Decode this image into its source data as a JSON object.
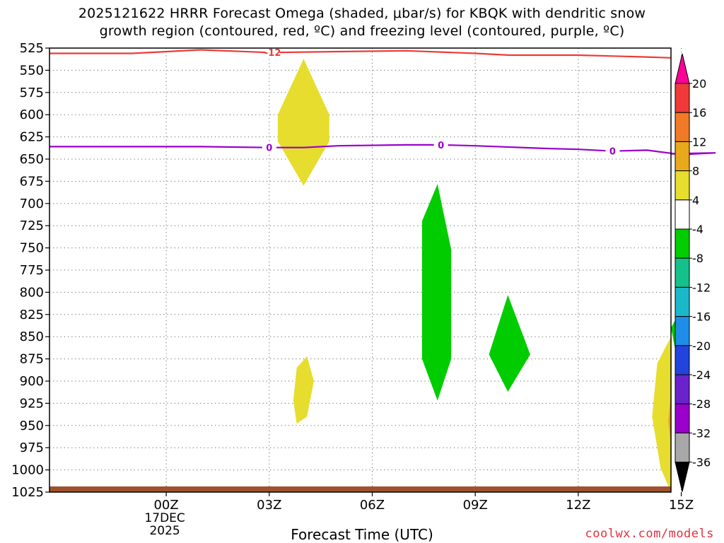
{
  "title": {
    "line1": "2025121622 HRRR Forecast Omega (shaded, μbar/s) for KBQK with dendritic snow",
    "line2": "growth region (contoured, red, ºC) and freezing level (contoured, purple, ºC)"
  },
  "xlabel": "Forecast Time (UTC)",
  "credit": "coolwx.com/models",
  "chart_data": {
    "type": "contour",
    "x_unit": "hours since 00Z 17DEC2025",
    "xlim": [
      -3.4,
      14.7
    ],
    "ylim": [
      525,
      1025
    ],
    "y_inverted": true,
    "yticks": [
      525,
      550,
      575,
      600,
      625,
      650,
      675,
      700,
      725,
      750,
      775,
      800,
      825,
      850,
      875,
      900,
      925,
      950,
      975,
      1000,
      1025
    ],
    "xticks": [
      {
        "x": 0,
        "label": "00Z",
        "date": "17DEC",
        "year": "2025"
      },
      {
        "x": 3,
        "label": "03Z"
      },
      {
        "x": 6,
        "label": "06Z"
      },
      {
        "x": 9,
        "label": "09Z"
      },
      {
        "x": 12,
        "label": "12Z"
      },
      {
        "x": 15,
        "label": "15Z"
      }
    ],
    "grid": true,
    "dgz_contour": {
      "label": "-12",
      "color": "#ee3a3a",
      "label_at": 3.1,
      "points": [
        [
          -3.4,
          531
        ],
        [
          -1,
          531
        ],
        [
          1,
          527
        ],
        [
          3,
          530
        ],
        [
          5,
          529
        ],
        [
          7,
          528
        ],
        [
          9,
          531
        ],
        [
          10,
          533
        ],
        [
          12,
          533
        ],
        [
          14,
          535
        ],
        [
          14.7,
          536
        ]
      ]
    },
    "freezing_level": {
      "label": "0",
      "color": "#9900cc",
      "label_at": [
        3.0,
        8.0,
        13.0
      ],
      "points": [
        [
          -3.4,
          636
        ],
        [
          -1,
          636
        ],
        [
          1,
          636
        ],
        [
          3,
          637
        ],
        [
          4,
          637
        ],
        [
          5,
          635
        ],
        [
          7,
          634
        ],
        [
          8,
          634
        ],
        [
          9,
          635
        ],
        [
          11,
          638
        ],
        [
          12,
          639
        ],
        [
          13,
          641
        ],
        [
          14,
          640
        ],
        [
          15,
          645
        ],
        [
          16,
          643
        ],
        [
          14.7,
          644
        ]
      ]
    },
    "omega_regions": [
      {
        "color": "#e6dd2e",
        "points": [
          [
            4.0,
            537
          ],
          [
            4.75,
            600
          ],
          [
            4.75,
            630
          ],
          [
            4.0,
            680
          ],
          [
            3.25,
            630
          ],
          [
            3.25,
            600
          ]
        ]
      },
      {
        "color": "#e6dd2e",
        "points": [
          [
            4.1,
            872
          ],
          [
            4.3,
            900
          ],
          [
            4.1,
            940
          ],
          [
            3.8,
            948
          ],
          [
            3.7,
            922
          ],
          [
            3.8,
            885
          ]
        ]
      },
      {
        "color": "#00cc00",
        "points": [
          [
            7.9,
            678
          ],
          [
            8.3,
            752
          ],
          [
            8.3,
            875
          ],
          [
            7.9,
            922
          ],
          [
            7.45,
            875
          ],
          [
            7.45,
            720
          ]
        ]
      },
      {
        "color": "#00cc00",
        "points": [
          [
            9.95,
            803
          ],
          [
            10.6,
            870
          ],
          [
            9.95,
            912
          ],
          [
            9.4,
            870
          ]
        ]
      },
      {
        "color": "#00cc00",
        "points": [
          [
            14.9,
            826
          ],
          [
            15.1,
            835
          ],
          [
            15.0,
            895
          ],
          [
            14.8,
            860
          ],
          [
            14.7,
            840
          ]
        ]
      },
      {
        "color": "#e6dd2e",
        "points": [
          [
            14.7,
            850
          ],
          [
            14.7,
            1025
          ],
          [
            14.4,
            998
          ],
          [
            14.15,
            940
          ],
          [
            14.3,
            880
          ]
        ]
      },
      {
        "color": "#f4a020",
        "points": [
          [
            14.7,
            915
          ],
          [
            14.7,
            970
          ],
          [
            14.62,
            945
          ]
        ]
      }
    ],
    "surface_color": "#a0522d",
    "colorbar": {
      "ticks": [
        "20",
        "16",
        "12",
        "8",
        "4",
        "-4",
        "-8",
        "-12",
        "-16",
        "-20",
        "-24",
        "-28",
        "-32",
        "-36"
      ],
      "colors": [
        "#ff0099",
        "#f03a3a",
        "#f07a25",
        "#e8a91a",
        "#e6dd2e",
        "#ffffff",
        "#00cc00",
        "#14c18a",
        "#1ab8c8",
        "#1e8ee8",
        "#2244dd",
        "#6a22cc",
        "#9900cc",
        "#a8a8a8",
        "#000000"
      ]
    }
  }
}
